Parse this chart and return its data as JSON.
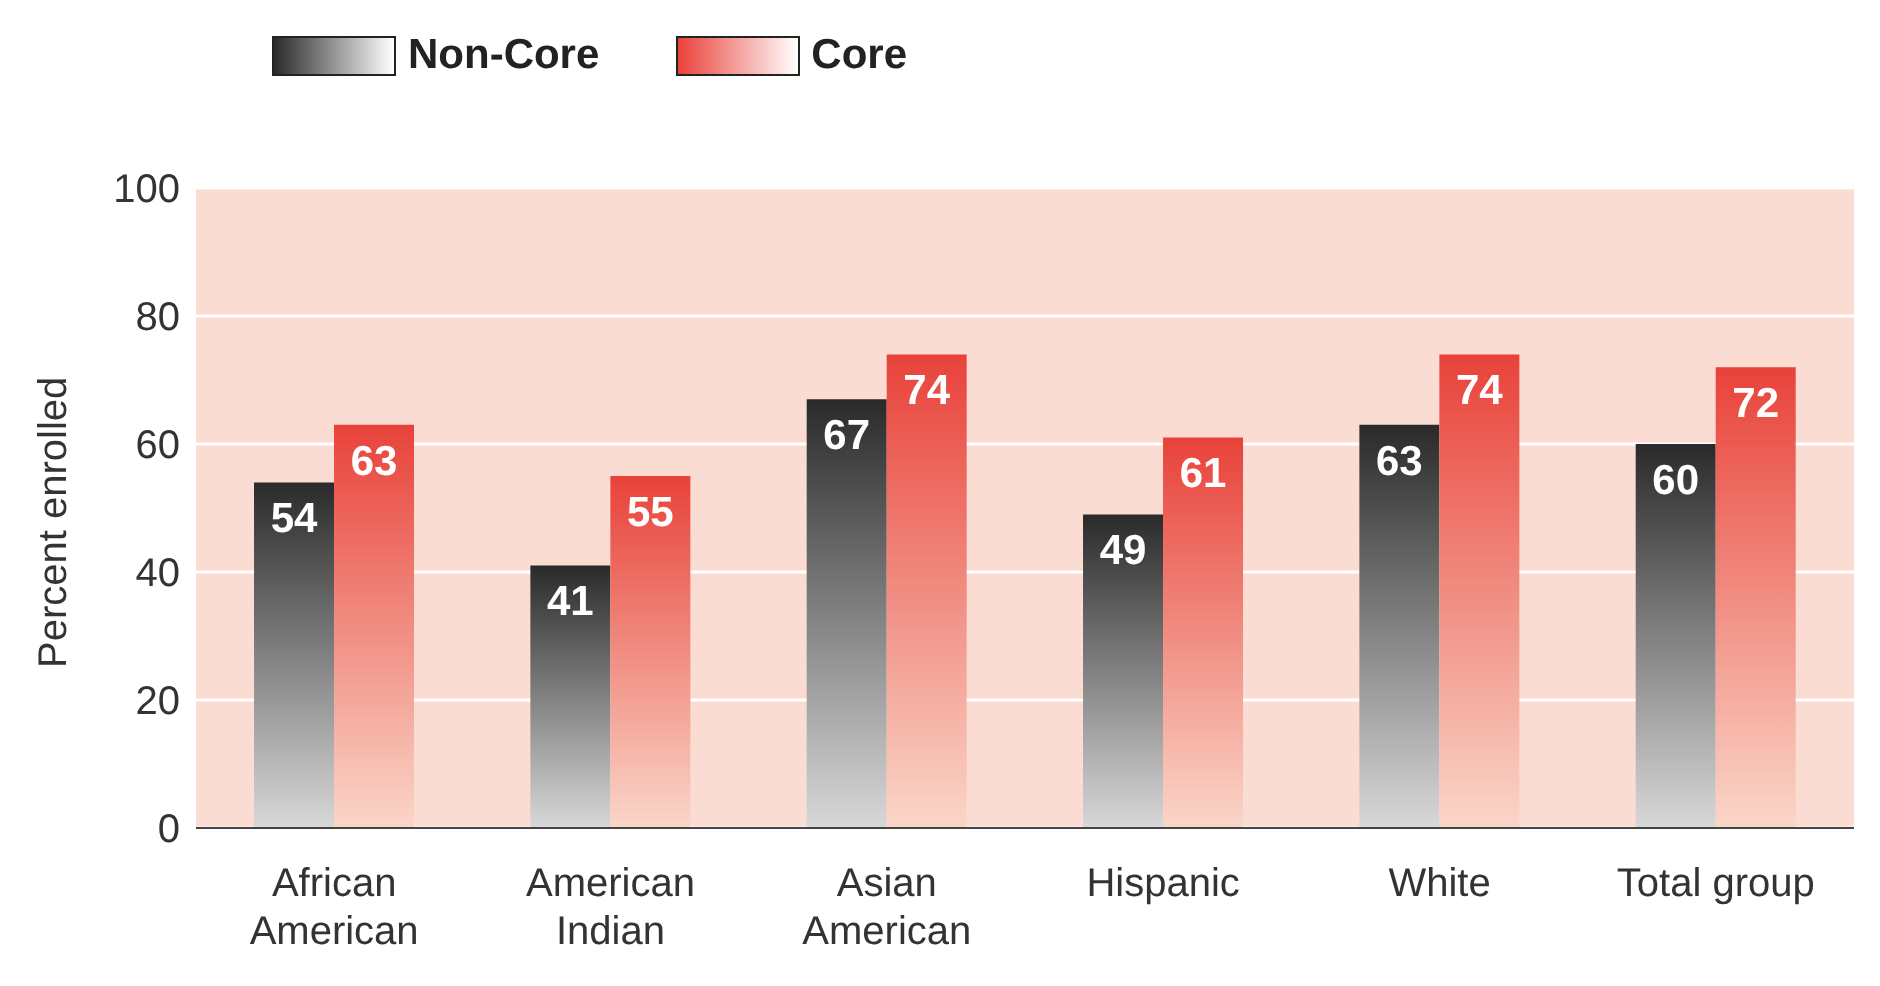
{
  "chart_data": {
    "type": "bar",
    "ylabel": "Percent enrolled",
    "categories": [
      "African American",
      "American Indian",
      "Asian American",
      "Hispanic",
      "White",
      "Total group"
    ],
    "series": [
      {
        "name": "Non-Core",
        "color": "#2a2a2a",
        "values": [
          54,
          41,
          67,
          49,
          63,
          60
        ]
      },
      {
        "name": "Core",
        "color": "#e8423a",
        "values": [
          63,
          55,
          74,
          61,
          74,
          72
        ]
      }
    ],
    "ylim": [
      0,
      100
    ],
    "yticks": [
      0,
      20,
      40,
      60,
      80,
      100
    ],
    "grid": "y",
    "legend": "top left",
    "data_labels": true
  }
}
